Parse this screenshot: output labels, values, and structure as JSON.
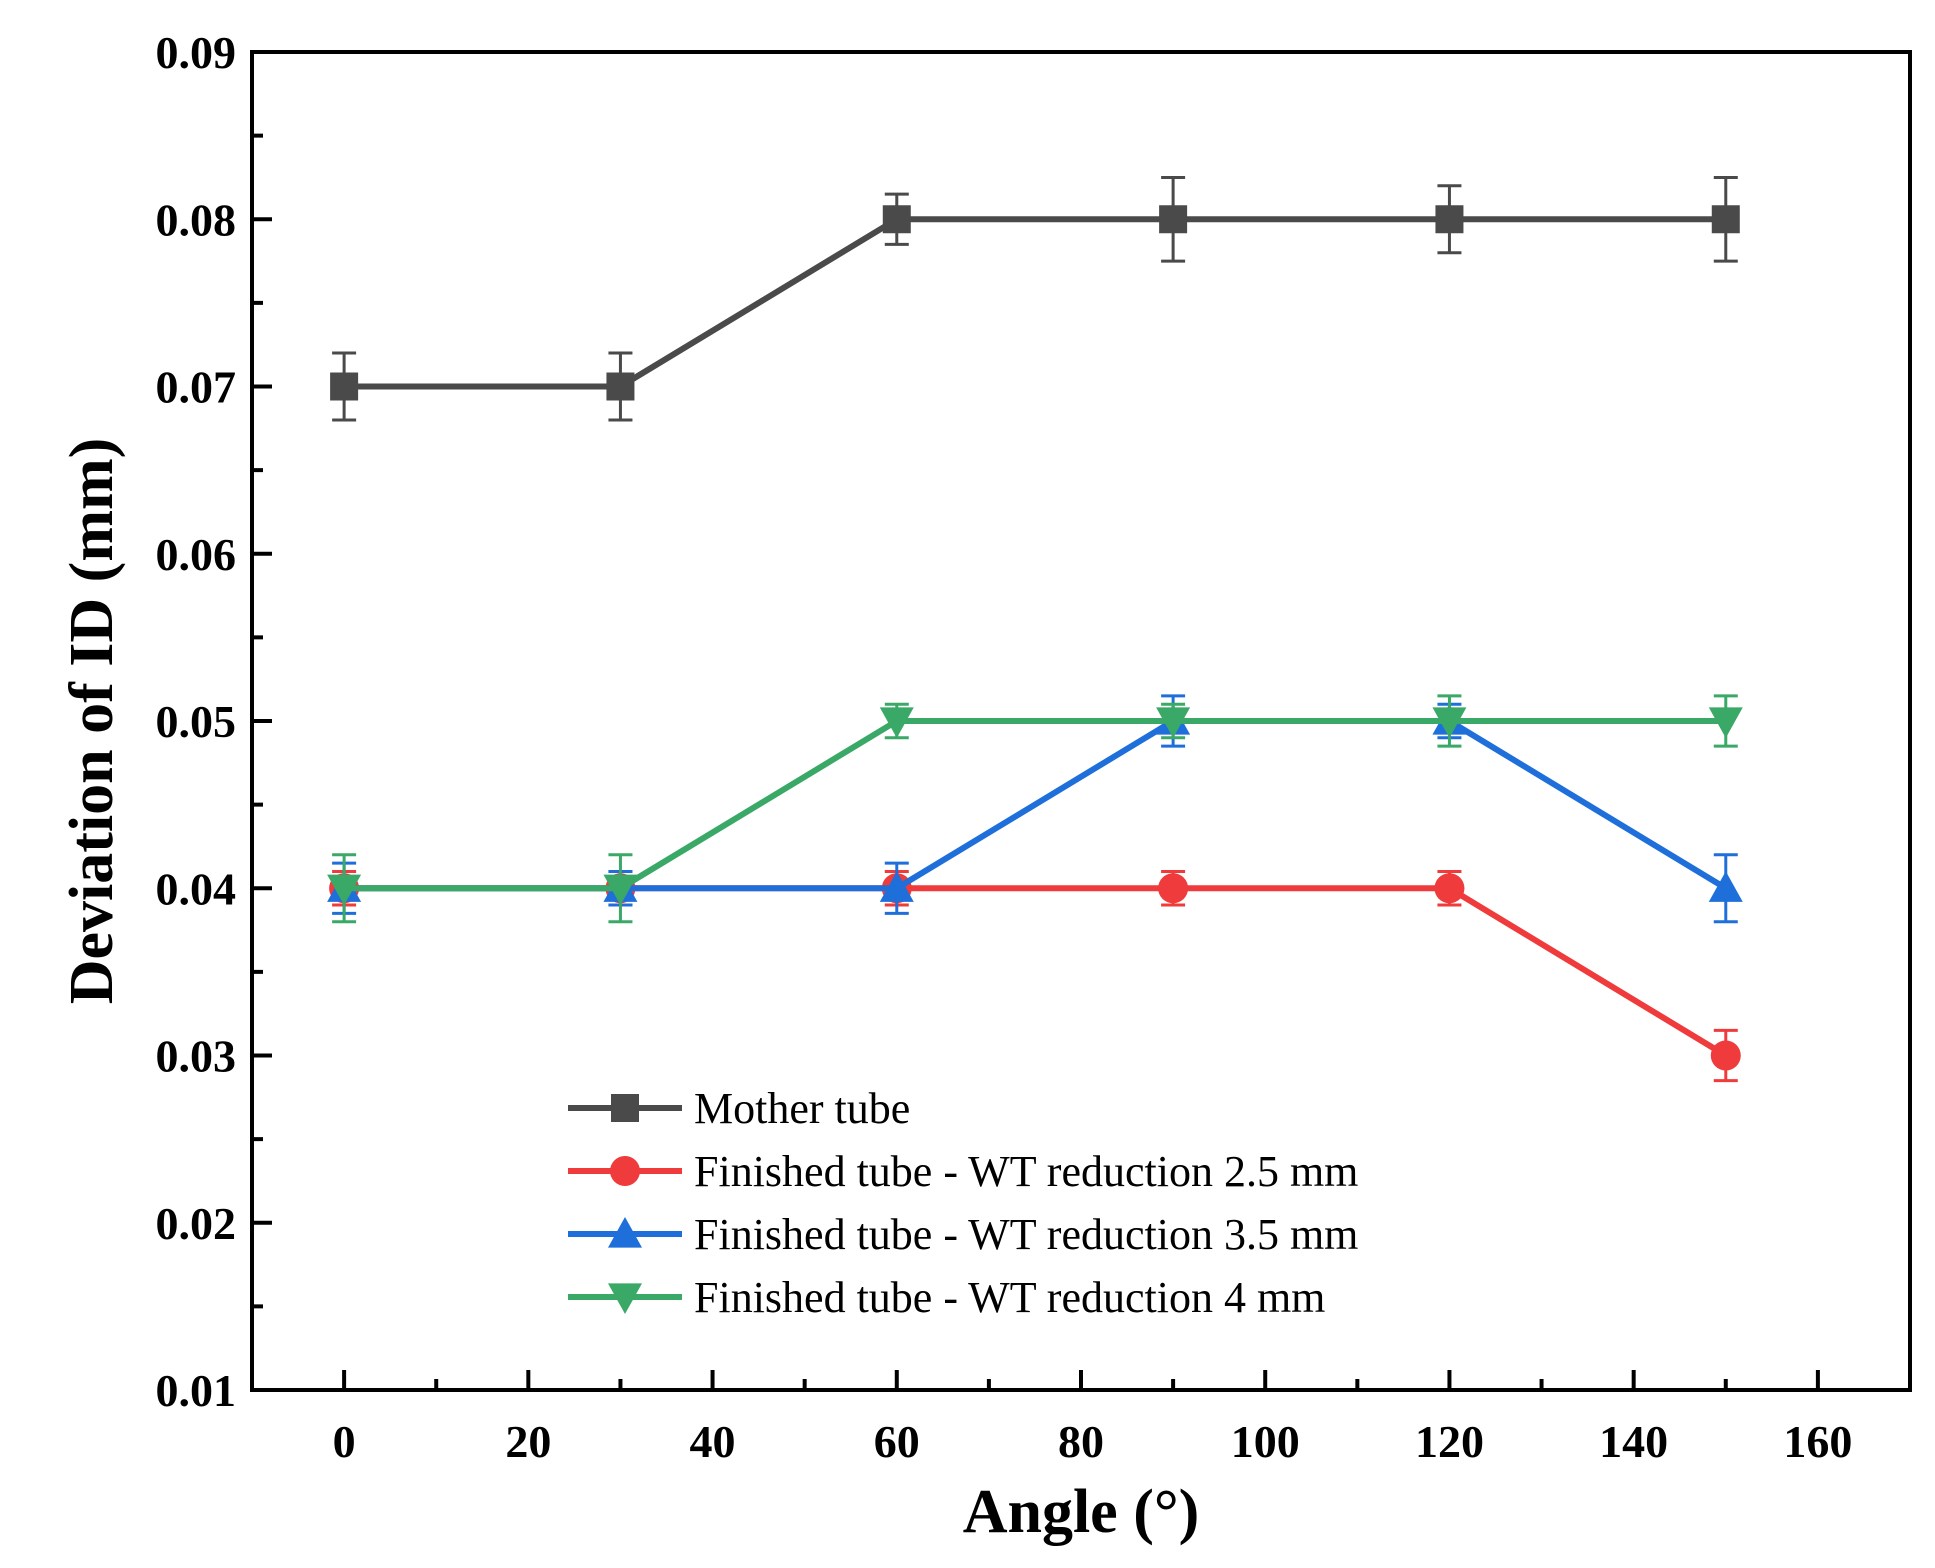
{
  "chart_data": {
    "type": "line",
    "title": "",
    "xlabel": "Angle (°)",
    "ylabel": "Deviation of ID (mm)",
    "xlim": [
      -10,
      170
    ],
    "ylim": [
      0.01,
      0.09
    ],
    "xticks": [
      0,
      20,
      40,
      60,
      80,
      100,
      120,
      140,
      160
    ],
    "xtick_labels": [
      "0",
      "20",
      "40",
      "60",
      "80",
      "100",
      "120",
      "140",
      "160"
    ],
    "yticks": [
      0.01,
      0.02,
      0.03,
      0.04,
      0.05,
      0.06,
      0.07,
      0.08,
      0.09
    ],
    "ytick_labels": [
      "0.01",
      "0.02",
      "0.03",
      "0.04",
      "0.05",
      "0.06",
      "0.07",
      "0.08",
      "0.09"
    ],
    "grid": false,
    "legend_position": "bottom-center",
    "x": [
      0,
      30,
      60,
      90,
      120,
      150
    ],
    "series": [
      {
        "name": "Mother tube",
        "marker": "square",
        "color": "#4a4a4a",
        "values": [
          0.07,
          0.07,
          0.08,
          0.08,
          0.08,
          0.08
        ],
        "errors": [
          0.002,
          0.002,
          0.0015,
          0.0025,
          0.002,
          0.0025
        ]
      },
      {
        "name": "Finished tube - WT reduction 2.5 mm",
        "marker": "circle",
        "color": "#ef3b3b",
        "values": [
          0.04,
          0.04,
          0.04,
          0.04,
          0.04,
          0.03
        ],
        "errors": [
          0.001,
          0.001,
          0.001,
          0.001,
          0.001,
          0.0015
        ]
      },
      {
        "name": "Finished tube - WT reduction 3.5 mm",
        "marker": "triangle-up",
        "color": "#1f6fdb",
        "values": [
          0.04,
          0.04,
          0.04,
          0.05,
          0.05,
          0.04
        ],
        "errors": [
          0.0015,
          0.001,
          0.0015,
          0.0015,
          0.001,
          0.002
        ]
      },
      {
        "name": "Finished tube - WT reduction 4 mm",
        "marker": "triangle-down",
        "color": "#3aa866",
        "values": [
          0.04,
          0.04,
          0.05,
          0.05,
          0.05,
          0.05
        ],
        "errors": [
          0.002,
          0.002,
          0.001,
          0.001,
          0.0015,
          0.0015
        ]
      }
    ]
  }
}
